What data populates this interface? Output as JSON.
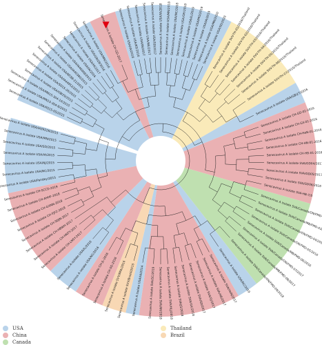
{
  "figure": {
    "colors": {
      "USA": "#b9d3ea",
      "China": "#eab1b3",
      "Canada": "#bfe0b0",
      "Thailand": "#faeab9",
      "Brazil": "#f8d8b4",
      "branch": "#222222",
      "highlight": "#e1000f"
    },
    "sectors": [
      {
        "start": 203,
        "end": 243,
        "country": "USA"
      },
      {
        "start": 243,
        "end": 253,
        "country": "China"
      },
      {
        "start": 253,
        "end": 297,
        "country": "USA"
      },
      {
        "start": 297,
        "end": 330,
        "country": "Thailand"
      },
      {
        "start": 330,
        "end": 338,
        "country": "USA"
      },
      {
        "start": 338,
        "end": 16,
        "country": "China"
      },
      {
        "start": 16,
        "end": 52,
        "country": "Canada"
      },
      {
        "start": 52,
        "end": 60,
        "country": "USA"
      },
      {
        "start": 60,
        "end": 98,
        "country": "China"
      },
      {
        "start": 98,
        "end": 103,
        "country": "USA"
      },
      {
        "start": 103,
        "end": 112,
        "country": "Brazil"
      },
      {
        "start": 112,
        "end": 123,
        "country": "China"
      },
      {
        "start": 123,
        "end": 135,
        "country": "USA"
      },
      {
        "start": 135,
        "end": 168,
        "country": "China"
      },
      {
        "start": 168,
        "end": 196,
        "country": "USA"
      }
    ],
    "tips": [
      {
        "angle": 205,
        "label": "Senecavirus A isolate USA/KS15-05/2015"
      },
      {
        "angle": 208,
        "label": "Senecavirus A isolate USA/MN15-304-8/2015"
      },
      {
        "angle": 211,
        "label": "Senecavirus A isolate USA/MN15-304-10/2015"
      },
      {
        "angle": 214,
        "label": "Senecavirus A isolate USA/GBI29/2015"
      },
      {
        "angle": 217,
        "label": "Senecavirus A isolate USA/SD15-26/2015"
      },
      {
        "angle": 220,
        "label": "Senecavirus A isolate USA/IA44952/2015"
      },
      {
        "angle": 223,
        "label": "Senecavirus A isolate USA/NC88-21/2015"
      },
      {
        "angle": 226,
        "label": "Senecavirus A isolate USA/IA40380/2015"
      },
      {
        "angle": 229,
        "label": "Senecavirus A isolate USA/IA46008/2015"
      },
      {
        "angle": 232,
        "label": "Senecavirus A isolate USA/IA/2016"
      },
      {
        "angle": 235,
        "label": "Senecavirus A isolate USA/HI/2017"
      },
      {
        "angle": 238,
        "label": "Senecavirus A isolate USA/GBI28/2016"
      },
      {
        "angle": 241,
        "label": "Senecavirus A isolate USA/MN/2016"
      },
      {
        "angle": 248,
        "label": "Senecavirus A isolate CH-GD-2017",
        "highlight": true
      },
      {
        "angle": 255,
        "label": "Senecavirus A isolate USA/IA/2016"
      },
      {
        "angle": 258,
        "label": "Senecavirus A isolate USA/KS/2016"
      },
      {
        "angle": 261,
        "label": "Senecavirus A isolate USA/IN/2017"
      },
      {
        "angle": 264,
        "label": "Senecavirus A isolate USA/NE/2017"
      },
      {
        "angle": 267,
        "label": "Senecavirus A isolate USA/SD/2017"
      },
      {
        "angle": 270,
        "label": "Senecavirus A isolate USA/IA/2018"
      },
      {
        "angle": 273,
        "label": "Senecavirus A isolate USA/MN/2018"
      },
      {
        "angle": 276,
        "label": "Senecavirus A isolate USA/NC/2018"
      },
      {
        "angle": 279,
        "label": "Senecavirus A isolate USA/OH/2018"
      },
      {
        "angle": 282,
        "label": "Senecavirus A isolate USA/IL/2019"
      },
      {
        "angle": 285,
        "label": "Senecavirus A isolate USA/MO/2019"
      },
      {
        "angle": 288,
        "label": "Senecavirus A isolate USA/IA/2019"
      },
      {
        "angle": 291,
        "label": "Senecavirus A isolate USA/MN/2020"
      },
      {
        "angle": 294,
        "label": "Senecavirus A isolate USA/SD/2020"
      },
      {
        "angle": 300,
        "label": "Senecavirus A isolate SVV-TH-01/2016/Thailand"
      },
      {
        "angle": 304,
        "label": "Senecavirus A isolate SVV-TH-02/2016/Thailand"
      },
      {
        "angle": 308,
        "label": "Senecavirus A isolate SVV-TH-03/2016/Thailand"
      },
      {
        "angle": 312,
        "label": "Senecavirus A isolate SVV-TH-04/2016/Thailand"
      },
      {
        "angle": 316,
        "label": "Senecavirus A isolate SVV-TH-05/2016/Thailand"
      },
      {
        "angle": 320,
        "label": "Senecavirus A isolate SVV-TH-06/2016/Thailand"
      },
      {
        "angle": 325,
        "label": "Senecavirus A isolate SVV-TH-07/2016/Thailand"
      },
      {
        "angle": 334,
        "label": "Senecavirus A isolate USA/GBI27/2016"
      },
      {
        "angle": 341,
        "label": "Senecavirus A isolate CH-GD-01-2016"
      },
      {
        "angle": 345,
        "label": "Senecavirus A isolate CH-GX-01-2016"
      },
      {
        "angle": 349,
        "label": "Senecavirus A isolate CH-HeN-01-2016"
      },
      {
        "angle": 353,
        "label": "Senecavirus A isolate CH-HN-01-2016"
      },
      {
        "angle": 357,
        "label": "Senecavirus A isolate CH-HB-01-2016"
      },
      {
        "angle": 1,
        "label": "Senecavirus A isolate SVA/GD04/2017"
      },
      {
        "angle": 5,
        "label": "Senecavirus A isolate SVA/GD05/2017"
      },
      {
        "angle": 9,
        "label": "Senecavirus A isolate SVA/GD06/2018"
      },
      {
        "angle": 13,
        "label": "Senecavirus A isolate SVA-HB-7/5"
      },
      {
        "angle": 19,
        "label": "Senecavirus A isolate SVA/Canada/ON/FMD-02/2015"
      },
      {
        "angle": 23,
        "label": "Senecavirus A isolate SVA/Canada/MB/FMD-03/2015"
      },
      {
        "angle": 27,
        "label": "Senecavirus A isolate SVA/Canada/ON/FMD-04/2015"
      },
      {
        "angle": 31,
        "label": "Senecavirus A isolate SVA/Canada/ON/FMD-05/2016"
      },
      {
        "angle": 35,
        "label": "Senecavirus A isolate SVA/Canada/MB/FMD-06/2016"
      },
      {
        "angle": 39,
        "label": "Senecavirus A isolate SVA/Canada/ON/FMD-07/2017"
      },
      {
        "angle": 43,
        "label": "Senecavirus A isolate SVA/Canada/MB/FMD-08/2017"
      },
      {
        "angle": 48,
        "label": "Senecavirus A isolate SVA/Canada/ON/FMD-09/2018"
      },
      {
        "angle": 56,
        "label": "Senecavirus A isolate USA/NC/2019"
      },
      {
        "angle": 62,
        "label": "Senecavirus A isolate SVA/HeN/2017"
      },
      {
        "angle": 66,
        "label": "Senecavirus A isolate SVA/HB/2017"
      },
      {
        "angle": 70,
        "label": "Senecavirus A isolate SVA/FJ/2017"
      },
      {
        "angle": 74,
        "label": "Senecavirus A isolate SVA/SD/2017"
      },
      {
        "angle": 78,
        "label": "Senecavirus A isolate SVA/GX/2018"
      },
      {
        "angle": 82,
        "label": "Senecavirus A isolate SVA/JS/2018"
      },
      {
        "angle": 86,
        "label": "Senecavirus A isolate SVA/HLJ/2018"
      },
      {
        "angle": 90,
        "label": "Senecavirus A isolate SVA/AH/2018"
      },
      {
        "angle": 94,
        "label": "Senecavirus A isolate SVA/SC/2019"
      },
      {
        "angle": 100,
        "label": "Senecavirus A isolate USA/IA/2014"
      },
      {
        "angle": 105,
        "label": "Senecavirus A isolate SVV/Brazil/2015"
      },
      {
        "angle": 110,
        "label": "Senecavirus A isolate SVV/BRA/2016"
      },
      {
        "angle": 115,
        "label": "Senecavirus A isolate CH-SD-2016"
      },
      {
        "angle": 120,
        "label": "Senecavirus A isolate CH-JL-2016"
      },
      {
        "angle": 126,
        "label": "Senecavirus A isolate USA/NC/2016"
      },
      {
        "angle": 131,
        "label": "Senecavirus A isolate USA/IL/2016"
      },
      {
        "angle": 138,
        "label": "Senecavirus A isolate CH-LNSY-2017"
      },
      {
        "angle": 142,
        "label": "Senecavirus A isolate CH-HNTY-2017"
      },
      {
        "angle": 146,
        "label": "Senecavirus A isolate CH-HBWH-2017"
      },
      {
        "angle": 150,
        "label": "Senecavirus A isolate CH-SDJN-2017"
      },
      {
        "angle": 154,
        "label": "Senecavirus A isolate CH-FJFZ-2018"
      },
      {
        "angle": 158,
        "label": "Senecavirus A isolate CH-GXNN-2018"
      },
      {
        "angle": 162,
        "label": "Senecavirus A isolate CH-AHHF-2018"
      },
      {
        "angle": 166,
        "label": "Senecavirus A isolate CH-SCCD-2019"
      },
      {
        "angle": 171,
        "label": "Senecavirus A isolate USA/Pandey/2015"
      },
      {
        "angle": 175,
        "label": "Senecavirus A isolate USA/NC/2015"
      },
      {
        "angle": 179,
        "label": "Senecavirus A isolate USA/NJ/2015"
      },
      {
        "angle": 183,
        "label": "Senecavirus A isolate USA/IA/2015"
      },
      {
        "angle": 187,
        "label": "Senecavirus A isolate USA/SD/2015"
      },
      {
        "angle": 191,
        "label": "Senecavirus A isolate USA/MN/2015"
      },
      {
        "angle": 195,
        "label": "Senecavirus A isolate USA/IA39226/2015"
      }
    ]
  },
  "legend": [
    {
      "label": "USA",
      "color": "#b9d3ea",
      "column": 0,
      "row": 0
    },
    {
      "label": "China",
      "color": "#eab1b3",
      "column": 0,
      "row": 1
    },
    {
      "label": "Canada",
      "color": "#bfe0b0",
      "column": 0,
      "row": 2
    },
    {
      "label": "Thailand",
      "color": "#faeab9",
      "column": 1,
      "row": 0
    },
    {
      "label": "Brazil",
      "color": "#f8d8b4",
      "column": 1,
      "row": 1
    }
  ]
}
